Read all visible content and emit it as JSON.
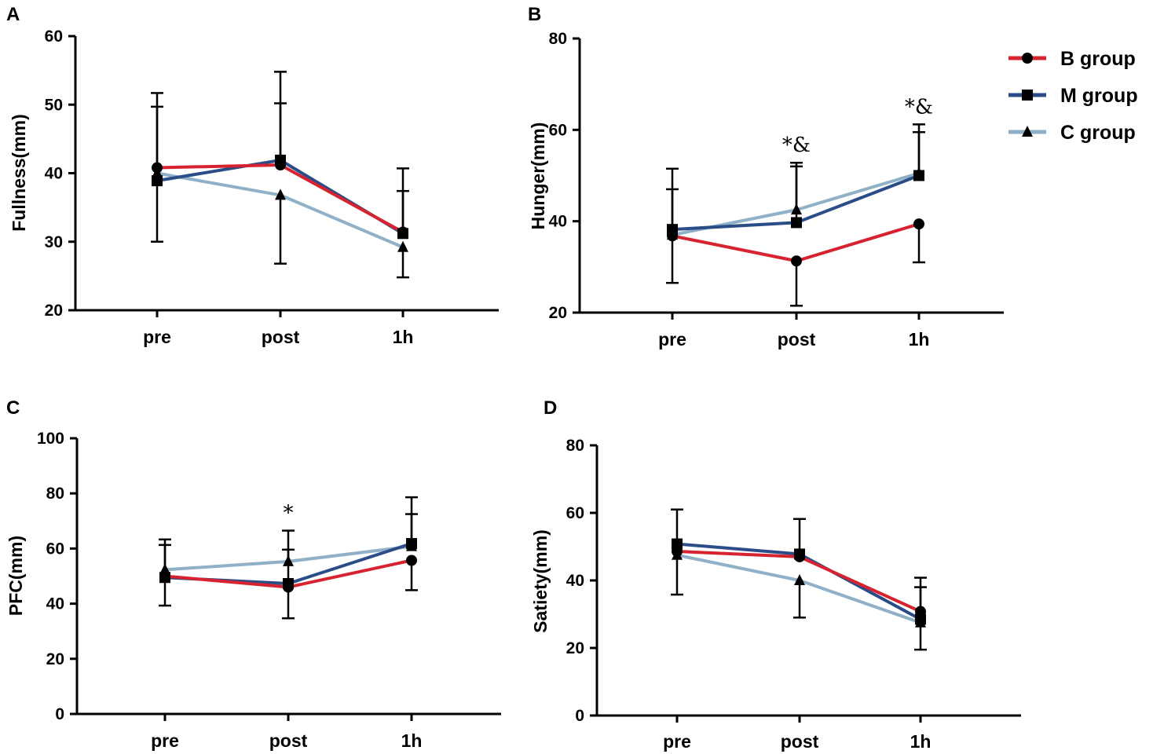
{
  "legend": [
    {
      "key": "B",
      "label": "B group",
      "color": "#d7232f",
      "marker": "circle"
    },
    {
      "key": "M",
      "label": "M group",
      "color": "#2b4d87",
      "marker": "square"
    },
    {
      "key": "C",
      "label": "C group",
      "color": "#8fb0c6",
      "marker": "triangle"
    }
  ],
  "chart_data": [
    {
      "panel": "A",
      "type": "line",
      "ylabel": "Fullness(mm)",
      "ylim": [
        20,
        60
      ],
      "yticks": [
        20,
        30,
        40,
        50,
        60
      ],
      "categories": [
        "pre",
        "post",
        "1h"
      ],
      "series": [
        {
          "name": "B group",
          "values": [
            40.8,
            41.2,
            31.4
          ],
          "err_lo": [
            30.0,
            null,
            null
          ],
          "err_hi": [
            51.7,
            54.8,
            40.7
          ]
        },
        {
          "name": "M group",
          "values": [
            38.9,
            41.9,
            31.2
          ],
          "err_lo": [
            null,
            null,
            null
          ],
          "err_hi": [
            49.7,
            50.2,
            37.4
          ]
        },
        {
          "name": "C group",
          "values": [
            40.0,
            36.8,
            29.2
          ],
          "err_lo": [
            null,
            26.8,
            24.8
          ],
          "err_hi": [
            null,
            null,
            null
          ]
        }
      ],
      "annotations": []
    },
    {
      "panel": "B",
      "type": "line",
      "ylabel": "Hunger(mm)",
      "ylim": [
        20,
        80
      ],
      "yticks": [
        20,
        40,
        60,
        80
      ],
      "categories": [
        "pre",
        "post",
        "1h"
      ],
      "series": [
        {
          "name": "B group",
          "values": [
            36.8,
            31.3,
            39.4
          ],
          "err_lo": [
            26.5,
            21.5,
            31.0
          ],
          "err_hi": [
            null,
            null,
            null
          ]
        },
        {
          "name": "M group",
          "values": [
            38.2,
            39.7,
            50.0
          ],
          "err_lo": [
            null,
            null,
            null
          ],
          "err_hi": [
            47.0,
            52.0,
            61.2
          ]
        },
        {
          "name": "C group",
          "values": [
            37.0,
            42.5,
            50.5
          ],
          "err_lo": [
            null,
            null,
            null
          ],
          "err_hi": [
            51.5,
            52.8,
            59.5
          ]
        }
      ],
      "annotations": [
        {
          "category": "post",
          "text": "*&"
        },
        {
          "category": "1h",
          "text": "*&"
        }
      ]
    },
    {
      "panel": "C",
      "type": "line",
      "ylabel": "PFC(mm)",
      "ylim": [
        0,
        100
      ],
      "yticks": [
        0,
        20,
        40,
        60,
        80,
        100
      ],
      "categories": [
        "pre",
        "post",
        "1h"
      ],
      "series": [
        {
          "name": "B group",
          "values": [
            50.0,
            46.0,
            55.7
          ],
          "err_lo": [
            39.3,
            34.7,
            44.9
          ],
          "err_hi": [
            null,
            null,
            null
          ]
        },
        {
          "name": "M group",
          "values": [
            49.5,
            47.3,
            61.8
          ],
          "err_lo": [
            null,
            null,
            null
          ],
          "err_hi": [
            63.3,
            59.6,
            78.6
          ]
        },
        {
          "name": "C group",
          "values": [
            52.3,
            55.3,
            60.8
          ],
          "err_lo": [
            null,
            null,
            null
          ],
          "err_hi": [
            61.3,
            66.5,
            72.5
          ]
        }
      ],
      "annotations": [
        {
          "category": "post",
          "text": "*"
        }
      ]
    },
    {
      "panel": "D",
      "type": "line",
      "ylabel": "Satiety(mm)",
      "ylim": [
        0,
        80
      ],
      "yticks": [
        0,
        20,
        40,
        60,
        80
      ],
      "categories": [
        "pre",
        "post",
        "1h"
      ],
      "series": [
        {
          "name": "B group",
          "values": [
            48.6,
            47.0,
            30.8
          ],
          "err_lo": [
            null,
            null,
            null
          ],
          "err_hi": [
            null,
            null,
            40.8
          ]
        },
        {
          "name": "M group",
          "values": [
            50.8,
            47.8,
            28.5
          ],
          "err_lo": [
            null,
            null,
            null
          ],
          "err_hi": [
            61.0,
            58.2,
            38.0
          ]
        },
        {
          "name": "C group",
          "values": [
            47.5,
            40.0,
            27.5
          ],
          "err_lo": [
            35.8,
            29.0,
            19.5
          ],
          "err_hi": [
            null,
            null,
            null
          ]
        }
      ],
      "annotations": []
    }
  ]
}
